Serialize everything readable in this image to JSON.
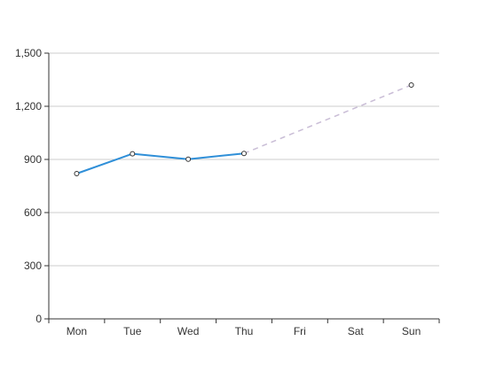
{
  "chart_data": {
    "type": "line",
    "categories": [
      "Mon",
      "Tue",
      "Wed",
      "Thu",
      "Fri",
      "Sat",
      "Sun"
    ],
    "ylim": [
      0,
      1500
    ],
    "y_ticks": [
      0,
      300,
      600,
      900,
      1200,
      1500
    ],
    "y_tick_labels": [
      "0",
      "300",
      "600",
      "900",
      "1,200",
      "1,500"
    ],
    "grid": "horizontal",
    "series": [
      {
        "values": [
          820,
          932,
          901,
          934,
          null,
          null,
          null
        ],
        "color": "#2f8fd8",
        "style": "solid"
      },
      {
        "values": [
          null,
          null,
          null,
          934,
          null,
          null,
          1320
        ],
        "color": "#c9bdd6",
        "style": "dashed"
      }
    ]
  }
}
